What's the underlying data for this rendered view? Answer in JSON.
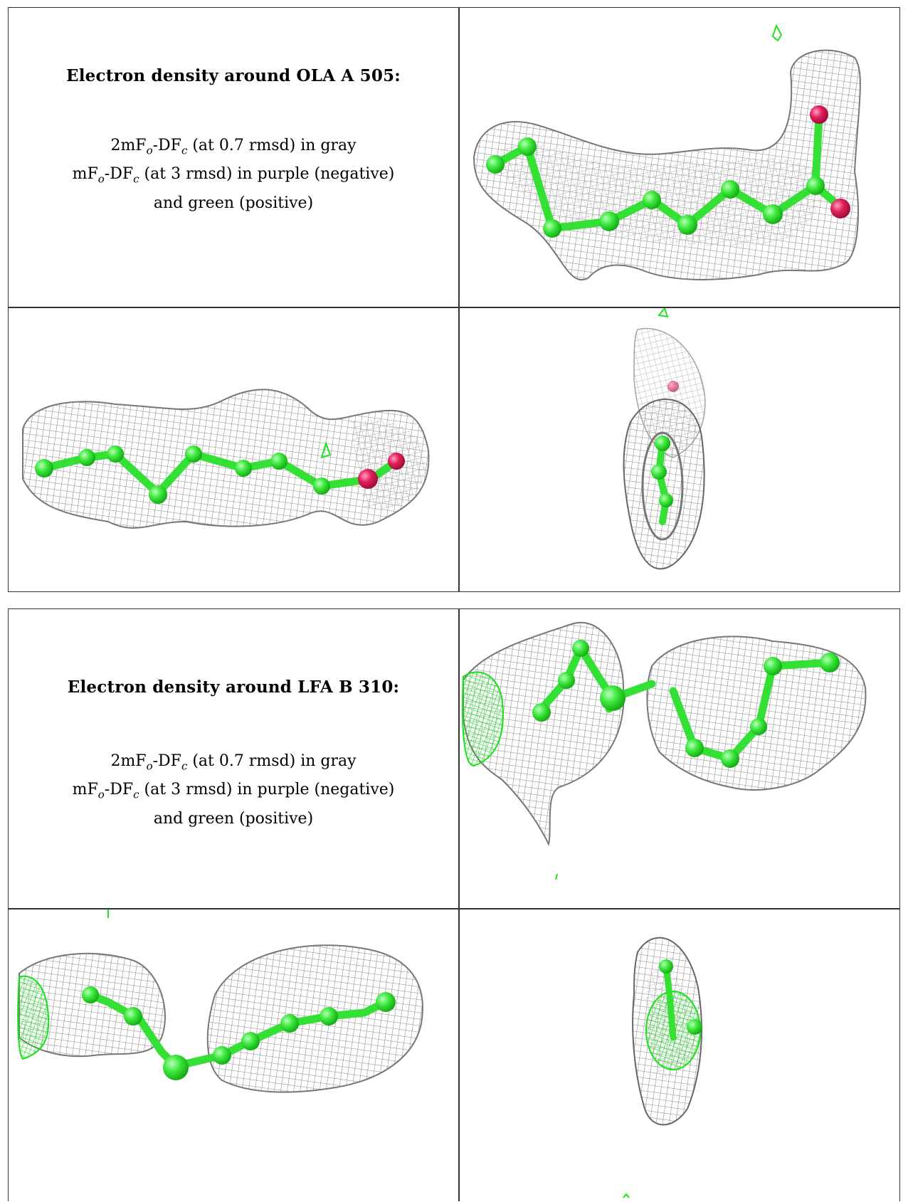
{
  "panels": [
    {
      "title": "Electron density around OLA A 505:",
      "line1_pre": "2mF",
      "line1_sub1": "o",
      "line1_mid": "-DF",
      "line1_sub2": "c",
      "line1_post": " (at 0.7 rmsd) in gray",
      "line2_pre": "mF",
      "line2_sub1": "o",
      "line2_mid": "-DF",
      "line2_sub2": "c",
      "line2_post": " (at 3 rmsd) in purple (negative)",
      "line3": "and green (positive)"
    },
    {
      "title": "Electron density around LFA B 310:",
      "line1_pre": "2mF",
      "line1_sub1": "o",
      "line1_mid": "-DF",
      "line1_sub2": "c",
      "line1_post": " (at 0.7 rmsd) in gray",
      "line2_pre": "mF",
      "line2_sub1": "o",
      "line2_mid": "-DF",
      "line2_sub2": "c",
      "line2_post": " (at 3 rmsd) in purple (negative)",
      "line3": "and green (positive)"
    }
  ],
  "colors": {
    "mesh": "#9a9a9a",
    "ligand": "#33e033",
    "oxygen": "#e0205a",
    "positive": "#22e022"
  }
}
